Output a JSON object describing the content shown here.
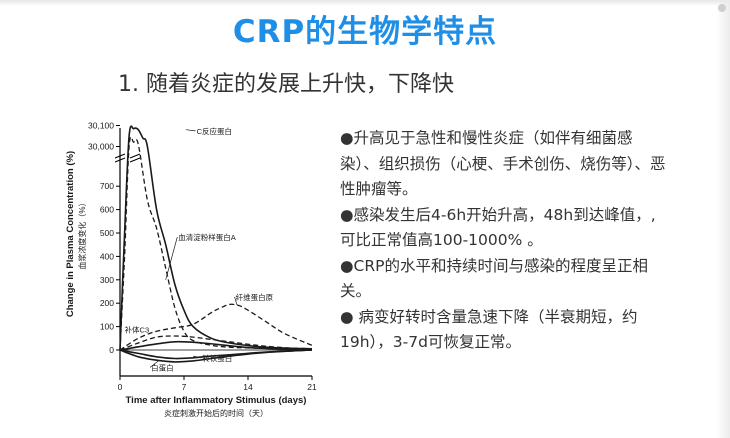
{
  "slide": {
    "title": "CRP的生物学特点",
    "subtitle": "1. 随着炎症的发展上升快，下降快",
    "bullets": [
      "●升高见于急性和慢性炎症（如伴有细菌感染）、组织损伤（心梗、手术创伤、烧伤等）、恶性肿瘤等。",
      "●感染发生后4-6h开始升高，48h到达峰值，,可比正常值高100-1000%  。",
      "●CRP的水平和持续时间与感染的程度呈正相关。",
      "● 病变好转时含量急速下降（半衰期短，约19h），3-7d可恢复正常。"
    ]
  },
  "chart_data": {
    "type": "line",
    "ylabel": "Change in Plasma Concentration (%)",
    "ylabel_cn": "血浆浓度变化（%）",
    "xlabel": "Time after Inflammatory Stimulus (days)",
    "xlabel_cn": "炎症刺激开始后的时间（天）",
    "x_ticks": [
      "0",
      "7",
      "14",
      "21"
    ],
    "y_ticks": [
      "0",
      "100",
      "200",
      "300",
      "400",
      "500",
      "600",
      "700",
      "30,000",
      "30,100"
    ],
    "xlim": [
      0,
      21
    ],
    "series": [
      {
        "name": "C反应蛋白",
        "style": "solid",
        "x": [
          0,
          0.5,
          1,
          1.5,
          2,
          2.5,
          3,
          4,
          5,
          6,
          7,
          8,
          10,
          12,
          15,
          18,
          21
        ],
        "y": [
          0,
          500,
          30050,
          30085,
          30080,
          30040,
          30000,
          600,
          450,
          280,
          170,
          100,
          50,
          30,
          15,
          8,
          5
        ]
      },
      {
        "name": "血清淀粉样蛋白A",
        "style": "dashed",
        "x": [
          0,
          0.5,
          1,
          1.5,
          2,
          3,
          4,
          5,
          6,
          7,
          8,
          10,
          12,
          15,
          18,
          21
        ],
        "y": [
          0,
          400,
          30000,
          30020,
          30010,
          640,
          520,
          350,
          180,
          80,
          40,
          20,
          12,
          8,
          5,
          4
        ]
      },
      {
        "name": "纤维蛋白原",
        "style": "dashed",
        "x": [
          0,
          2,
          4,
          6,
          8,
          10,
          11,
          12,
          13,
          14,
          16,
          18,
          21
        ],
        "y": [
          0,
          50,
          80,
          95,
          110,
          160,
          180,
          195,
          190,
          170,
          120,
          70,
          20
        ]
      },
      {
        "name": "补体C3",
        "style": "dashed",
        "x": [
          0,
          2,
          4,
          6,
          8,
          10,
          12,
          15,
          18,
          21
        ],
        "y": [
          0,
          30,
          55,
          60,
          55,
          45,
          35,
          20,
          10,
          5
        ]
      },
      {
        "name": "转铁蛋白",
        "style": "solid",
        "x": [
          0,
          2,
          4,
          6,
          8,
          10,
          13,
          16,
          21
        ],
        "y": [
          0,
          -10,
          -20,
          -25,
          -23,
          -18,
          -12,
          -6,
          0
        ]
      },
      {
        "name": "白蛋白",
        "style": "solid",
        "x": [
          0,
          2,
          4,
          6,
          8,
          10,
          13,
          16,
          21
        ],
        "y": [
          0,
          -20,
          -30,
          -35,
          -32,
          -25,
          -15,
          -7,
          0
        ]
      },
      {
        "style": "solid",
        "x": [
          0,
          3,
          6,
          9,
          12,
          15,
          21
        ],
        "y": [
          0,
          20,
          35,
          30,
          18,
          8,
          0
        ]
      }
    ]
  }
}
